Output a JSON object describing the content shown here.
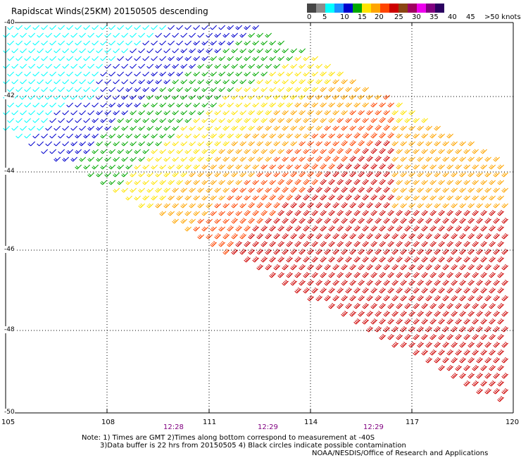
{
  "title": "Rapidscat Winds(25KM) 20150505 descending",
  "scale": {
    "colors": [
      "#454545",
      "#8c8c8c",
      "#00ffff",
      "#1e90ff",
      "#0000cd",
      "#00a800",
      "#ffe400",
      "#ffa500",
      "#ff4500",
      "#cd0000",
      "#8b4513",
      "#a00060",
      "#ee00ee",
      "#800080",
      "#2b0060"
    ],
    "labels": [
      "0",
      "5",
      "10",
      "15",
      "20",
      "25",
      "30",
      "35",
      "40",
      "45",
      ">50 knots"
    ]
  },
  "axes": {
    "lat_labels": [
      "-40",
      "-42",
      "-44",
      "-46",
      "-48",
      "-50"
    ],
    "lon_labels": [
      "105",
      "108",
      "111",
      "114",
      "117",
      "120"
    ]
  },
  "times": [
    "12:28",
    "12:29",
    "12:29"
  ],
  "notes": {
    "line1": "Note: 1) Times are GMT 2)Times along bottom correspond to measurement at -40S",
    "line2": "3)Data buffer is 22 hrs from 20150505 4) Black circles indicate possible contamination",
    "credit": "NOAA/NESDIS/Office of Research and Applications"
  }
}
